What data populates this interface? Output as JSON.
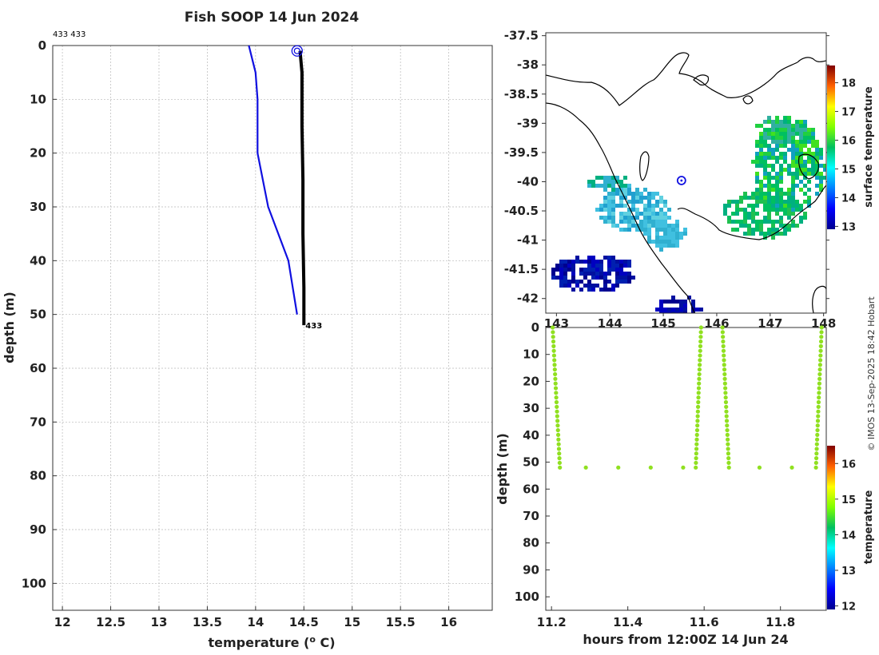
{
  "title": "Fish SOOP 14 Jun 2024",
  "credit": "© IMOS 13-Sep-2025 18:42 Hobart",
  "colors": {
    "profile_blue": "#1010e0",
    "profile_black": "#000000",
    "depth_time_points": "#90e020",
    "land_outline": "#000000"
  },
  "chart_data": [
    {
      "type": "line",
      "name": "temperature-profile",
      "top_label": "433 433",
      "end_label": "433",
      "xlabel": "temperature (",
      "xlabel_deg": "o",
      "xlabel_unit": " C)",
      "ylabel": "depth (m)",
      "xlim": [
        11.9,
        16.45
      ],
      "ylim": [
        105,
        0
      ],
      "xticks": [
        "12",
        "12.5",
        "13",
        "13.5",
        "14",
        "14.5",
        "15",
        "15.5",
        "16"
      ],
      "yticks": [
        "0",
        "10",
        "20",
        "30",
        "40",
        "50",
        "60",
        "70",
        "80",
        "90",
        "100"
      ],
      "grid": true,
      "series": [
        {
          "x": [
            13.93,
            14.0,
            14.02,
            14.02,
            14.02,
            14.13,
            14.34,
            14.43
          ],
          "y": [
            0,
            5,
            10,
            15,
            20,
            30,
            40,
            50
          ],
          "color": "#1010e0"
        },
        {
          "x": [
            14.46,
            14.48,
            14.48,
            14.49,
            14.49,
            14.5,
            14.5
          ],
          "y": [
            1,
            5,
            15,
            25,
            35,
            45,
            52
          ],
          "color": "#000000"
        }
      ],
      "markers": [
        {
          "x": 14.43,
          "y": 1,
          "shape": "circle"
        }
      ]
    },
    {
      "type": "heatmap",
      "name": "surface-temperature-map",
      "xticks": [
        "143",
        "144",
        "145",
        "146",
        "147",
        "148"
      ],
      "yticks": [
        "-37.5",
        "-38",
        "-38.5",
        "-39",
        "-39.5",
        "-40",
        "-40.5",
        "-41",
        "-41.5",
        "-42"
      ],
      "xlim": [
        142.8,
        148.05
      ],
      "ylim": [
        -42.25,
        -37.45
      ],
      "colorbar_label": "surface temperature",
      "colorbar_ticks": [
        "13",
        "14",
        "15",
        "16",
        "17",
        "18"
      ],
      "colorbar_range": [
        12.9,
        18.6
      ],
      "marker": {
        "lon": 145.34,
        "lat": -39.98
      }
    },
    {
      "type": "scatter",
      "name": "depth-time-section",
      "xlabel": "hours from 12:00Z 14 Jun 24",
      "ylabel": "depth (m)",
      "xticks": [
        "11.2",
        "11.4",
        "11.6",
        "11.8"
      ],
      "yticks": [
        "0",
        "10",
        "20",
        "30",
        "40",
        "50",
        "60",
        "70",
        "80",
        "90",
        "100"
      ],
      "xlim": [
        11.185,
        11.92
      ],
      "ylim": [
        105,
        0
      ],
      "colorbar_label": "temperature",
      "colorbar_ticks": [
        "12",
        "13",
        "14",
        "15",
        "16"
      ],
      "colorbar_range": [
        11.9,
        16.5
      ],
      "segments": [
        {
          "x0": 11.203,
          "x1": 11.222,
          "y0": 0,
          "y1": 52
        },
        {
          "x0": 11.592,
          "x1": 11.578,
          "y0": 0,
          "y1": 52
        },
        {
          "x0": 11.648,
          "x1": 11.665,
          "y0": 0,
          "y1": 52
        },
        {
          "x0": 11.908,
          "x1": 11.893,
          "y0": 0,
          "y1": 52
        }
      ],
      "bottom_points": [
        {
          "x": 11.29,
          "y": 52
        },
        {
          "x": 11.375,
          "y": 52
        },
        {
          "x": 11.46,
          "y": 52
        },
        {
          "x": 11.545,
          "y": 52
        },
        {
          "x": 11.745,
          "y": 52
        },
        {
          "x": 11.83,
          "y": 52
        }
      ],
      "point_color": "#90e020"
    }
  ]
}
